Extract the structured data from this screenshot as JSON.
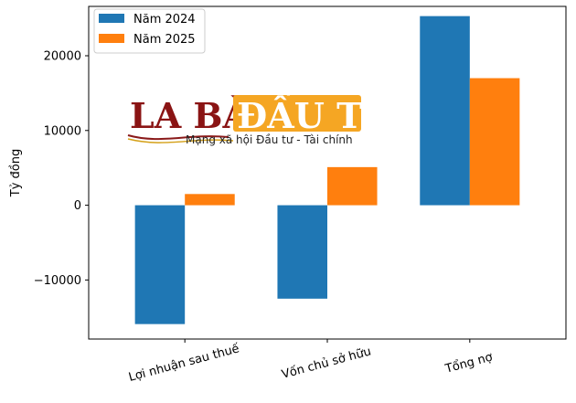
{
  "chart_data": {
    "type": "bar",
    "categories": [
      "Lợi nhuận sau thuế",
      "Vốn chủ sở hữu",
      "Tổng nợ"
    ],
    "series": [
      {
        "name": "Năm 2024",
        "color": "#1f77b4",
        "values": [
          -15900,
          -12500,
          25300
        ]
      },
      {
        "name": "Năm 2025",
        "color": "#ff7f0e",
        "values": [
          1500,
          5100,
          17000
        ]
      }
    ],
    "xlabel": "",
    "ylabel": "Tỷ đồng",
    "yticks": [
      -10000,
      0,
      10000,
      20000
    ],
    "ytick_labels": [
      "−10000",
      "0",
      "10000",
      "20000"
    ],
    "ylim": [
      -17900,
      26600
    ],
    "grid": false,
    "legend_position": "top-left"
  },
  "watermark": {
    "brand_left": "LA BÀN",
    "brand_right": "ĐẦU TƯ",
    "tagline": "Mạng xã hội Đầu tư - Tài chính"
  }
}
